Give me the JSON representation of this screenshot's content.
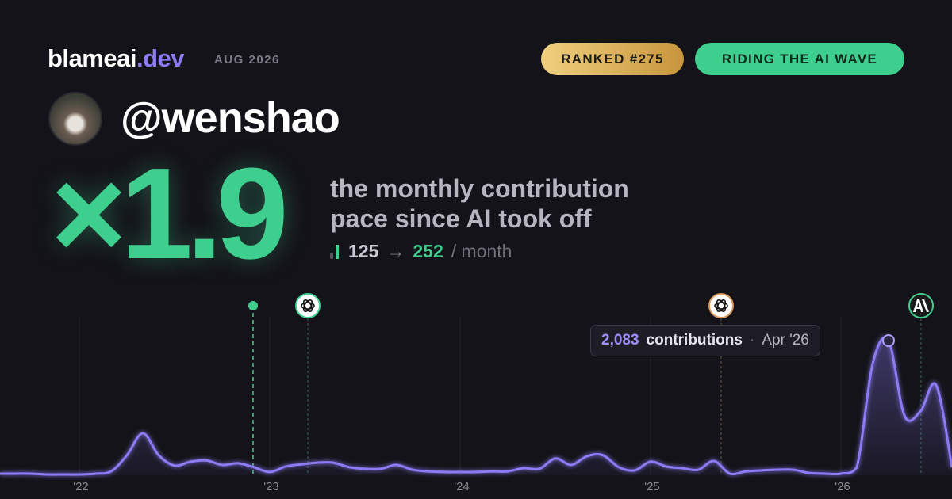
{
  "header": {
    "brand": "blameai",
    "brand_tld": ".dev",
    "date": "AUG 2026",
    "badges": [
      "RANKED #275",
      "RIDING THE AI WAVE"
    ]
  },
  "user": {
    "handle": "@wenshao"
  },
  "stat": {
    "multiplier": "×1.9",
    "description": [
      "the monthly contribution",
      "pace since AI took off"
    ],
    "before": 125,
    "arrow": "→",
    "after": 252,
    "unit": "/ month"
  },
  "chart_data": {
    "type": "area",
    "color": "#8b7cf6",
    "categories": [
      null,
      null,
      null,
      null,
      "'22",
      null,
      null,
      null,
      null,
      null,
      null,
      null,
      null,
      null,
      null,
      null,
      "'23",
      null,
      null,
      null,
      null,
      null,
      null,
      null,
      null,
      null,
      null,
      null,
      "'24",
      null,
      null,
      null,
      null,
      null,
      null,
      null,
      null,
      null,
      null,
      null,
      "'25",
      null,
      null,
      null,
      null,
      null,
      null,
      null,
      null,
      null,
      null,
      null,
      "'26",
      null,
      null,
      null,
      null,
      null,
      null,
      null
    ],
    "values": [
      25,
      25,
      12,
      12,
      12,
      25,
      60,
      310,
      650,
      310,
      150,
      210,
      230,
      160,
      185,
      125,
      50,
      135,
      170,
      195,
      195,
      125,
      100,
      100,
      160,
      85,
      60,
      50,
      50,
      50,
      60,
      60,
      110,
      100,
      260,
      160,
      295,
      310,
      125,
      75,
      210,
      135,
      110,
      85,
      220,
      25,
      60,
      75,
      85,
      85,
      35,
      25,
      25,
      125,
      1725,
      2083,
      925,
      985,
      1395,
      125
    ],
    "ylim": [
      0,
      2450
    ],
    "tooltip": {
      "value_label": "2,083",
      "text": "contributions",
      "separator": "·",
      "date": "Apr '26"
    }
  }
}
